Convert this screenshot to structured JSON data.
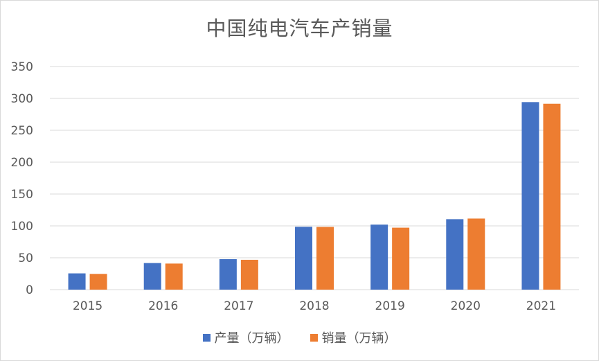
{
  "chart_data": {
    "type": "bar",
    "title": "中国纯电汽车产销量",
    "categories": [
      "2015",
      "2016",
      "2017",
      "2018",
      "2019",
      "2020",
      "2021"
    ],
    "series": [
      {
        "name": "产量（万辆）",
        "color": "#4472c4",
        "values": [
          25.5,
          41.7,
          47.8,
          98.6,
          102,
          110.5,
          294.2
        ]
      },
      {
        "name": "销量（万辆）",
        "color": "#ed7d31",
        "values": [
          24.7,
          40.9,
          46.8,
          98.4,
          97.2,
          111.5,
          291.6
        ]
      }
    ],
    "ylim": [
      0,
      350
    ],
    "yticks": [
      0,
      50,
      100,
      150,
      200,
      250,
      300,
      350
    ],
    "grid": true,
    "legend_position": "bottom"
  }
}
